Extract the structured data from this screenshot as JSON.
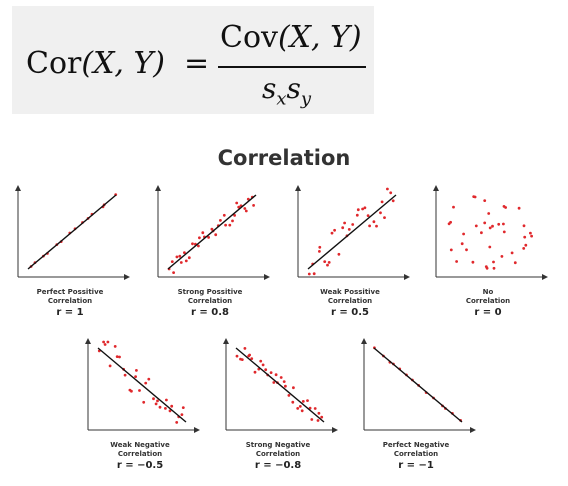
{
  "formula": {
    "lhs_func": "Cor",
    "lhs_args": "(X, Y)",
    "equals": "=",
    "numerator_func": "Cov",
    "numerator_args": "(X, Y)",
    "denominator_s1": "s",
    "denominator_sub1": "x",
    "denominator_s2": "s",
    "denominator_sub2": "y"
  },
  "title": "Correlation",
  "colors": {
    "points": "#e0282c",
    "line": "#111111",
    "axes": "#333333"
  },
  "plots": [
    {
      "label_line1": "Perfect Possitive",
      "label_line2": "Correlation",
      "r_label": "r = 1",
      "r": 1
    },
    {
      "label_line1": "Strong Possitive",
      "label_line2": "Correlation",
      "r_label": "r = 0.8",
      "r": 0.8
    },
    {
      "label_line1": "Weak Possitive",
      "label_line2": "Correlation",
      "r_label": "r = 0.5",
      "r": 0.5
    },
    {
      "label_line1": "No",
      "label_line2": "Correlation",
      "r_label": "r = 0",
      "r": 0
    },
    {
      "label_line1": "Weak Negative",
      "label_line2": "Correlation",
      "r_label": "r = −0.5",
      "r": -0.5
    },
    {
      "label_line1": "Strong Negative",
      "label_line2": "Correlation",
      "r_label": "r = −0.8",
      "r": -0.8
    },
    {
      "label_line1": "Perfect Negative",
      "label_line2": "Correlation",
      "r_label": "r = −1",
      "r": -1
    }
  ]
}
